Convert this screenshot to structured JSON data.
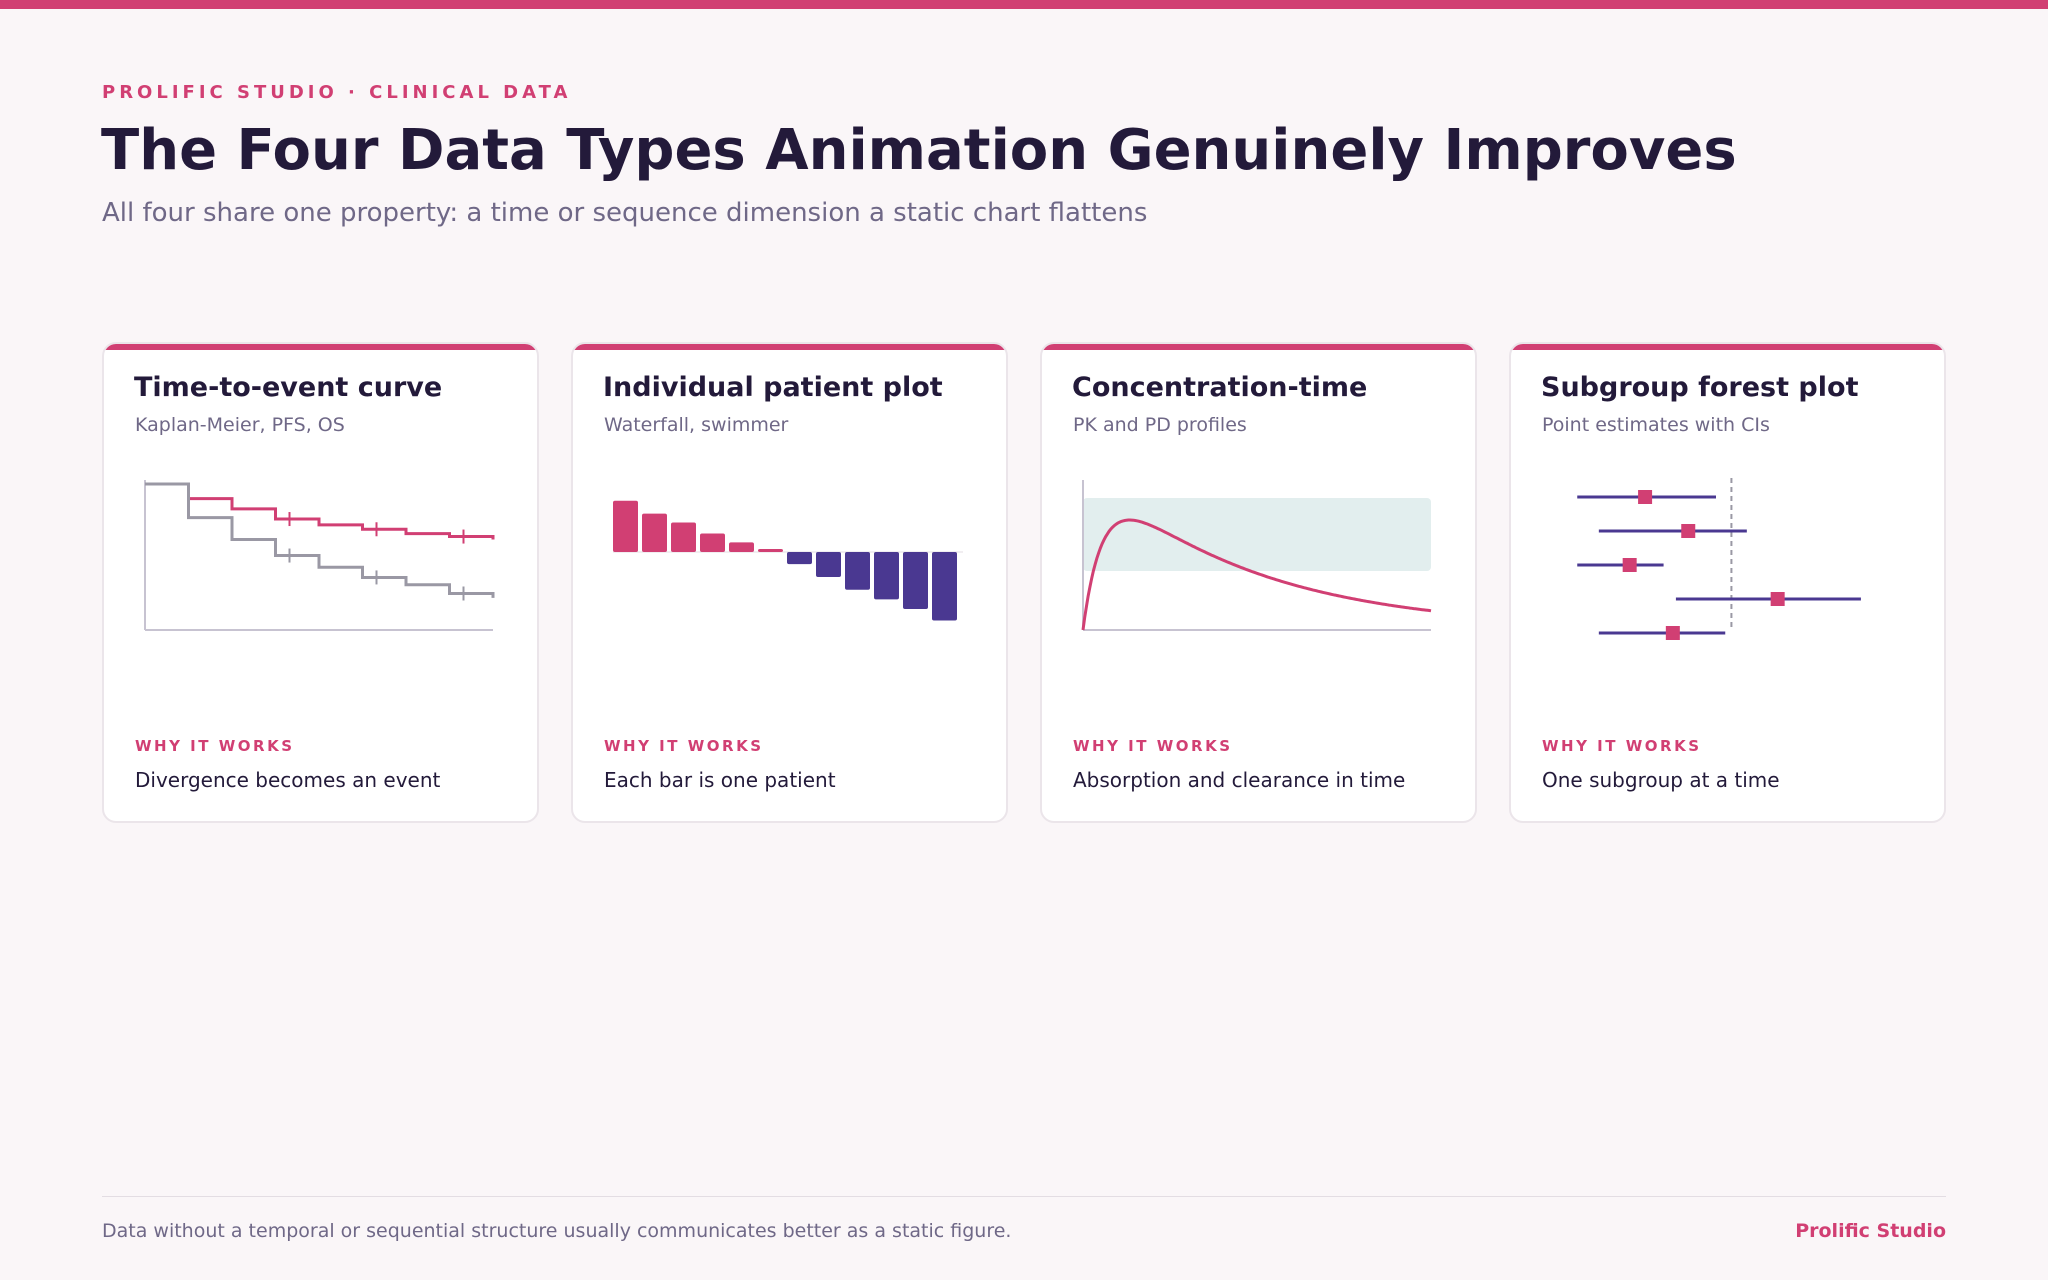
{
  "header": {
    "eyebrow": "PROLIFIC STUDIO · CLINICAL DATA",
    "title": "The Four Data Types Animation Genuinely Improves",
    "subtitle": "All four share one property: a time or sequence dimension a static chart flattens"
  },
  "colors": {
    "accent": "#d13f73",
    "secondary": "#4a3891",
    "muted_line": "#9a98a4",
    "band": "#e2eeee",
    "text": "#231a3a"
  },
  "cards": [
    {
      "title": "Time-to-event curve",
      "subtitle": "Kaplan-Meier, PFS, OS",
      "why_label": "WHY IT WORKS",
      "why_text": "Divergence becomes an event",
      "icon": "kaplan-meier-chart"
    },
    {
      "title": "Individual patient plot",
      "subtitle": "Waterfall, swimmer",
      "why_label": "WHY IT WORKS",
      "why_text": "Each bar is one patient",
      "icon": "waterfall-chart"
    },
    {
      "title": "Concentration-time",
      "subtitle": "PK and PD profiles",
      "why_label": "WHY IT WORKS",
      "why_text": "Absorption and clearance in time",
      "icon": "concentration-curve-chart"
    },
    {
      "title": "Subgroup forest plot",
      "subtitle": "Point estimates with CIs",
      "why_label": "WHY IT WORKS",
      "why_text": "One subgroup at a time",
      "icon": "forest-plot-chart"
    }
  ],
  "chart_data": [
    {
      "type": "line",
      "step": true,
      "series": [
        {
          "values": [
            1.0,
            0.9,
            0.83,
            0.76,
            0.72,
            0.69,
            0.66,
            0.64,
            0.62
          ],
          "x": [
            0,
            1,
            2,
            3,
            4,
            5,
            6,
            7,
            8
          ]
        },
        {
          "values": [
            1.0,
            0.77,
            0.62,
            0.51,
            0.43,
            0.36,
            0.31,
            0.25,
            0.22
          ],
          "x": [
            0,
            1,
            2,
            3,
            4,
            5,
            6,
            7,
            8
          ]
        }
      ]
    },
    {
      "type": "bar",
      "values": [
        0.8,
        0.6,
        0.46,
        0.29,
        0.15,
        0.04,
        -0.19,
        -0.39,
        -0.59,
        -0.74,
        -0.89,
        -1.07
      ]
    },
    {
      "type": "line",
      "shape": "absorption-elimination",
      "ylim": [
        0,
        1
      ]
    },
    {
      "type": "forest",
      "reference": 1.0,
      "rows": [
        {
          "estimate": 0.72,
          "low": 0.5,
          "high": 0.95
        },
        {
          "estimate": 0.86,
          "low": 0.57,
          "high": 1.05
        },
        {
          "estimate": 0.67,
          "low": 0.5,
          "high": 0.78
        },
        {
          "estimate": 1.15,
          "low": 0.82,
          "high": 1.42
        },
        {
          "estimate": 0.81,
          "low": 0.57,
          "high": 0.98
        }
      ]
    }
  ],
  "footer": {
    "note": "Data without a temporal or sequential structure usually communicates better as a static figure.",
    "brand": "Prolific Studio"
  }
}
